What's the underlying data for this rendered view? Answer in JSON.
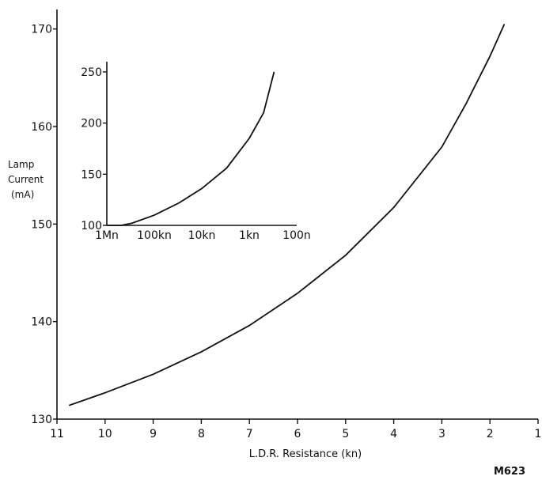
{
  "chart_data": [
    {
      "type": "line",
      "title": "",
      "xlabel": "L.D.R. Resistance (kn)",
      "ylabel": [
        "Lamp",
        "Current",
        "(mA)"
      ],
      "xlim": [
        11,
        1
      ],
      "ylim": [
        130,
        172
      ],
      "xticks": [
        11,
        10,
        9,
        8,
        7,
        6,
        5,
        4,
        3,
        2,
        1
      ],
      "xtick_labels": [
        "11",
        "10",
        "9",
        "8",
        "7",
        "6",
        "5",
        "4",
        "3",
        "2",
        "1"
      ],
      "yticks": [
        130,
        140,
        150,
        160,
        170
      ],
      "ytick_labels": [
        "130",
        "140",
        "150",
        "160",
        "170"
      ],
      "series": [
        {
          "x": [
            10.75,
            10,
            9,
            8,
            7,
            6,
            5,
            4,
            3,
            2.5,
            2,
            1.7
          ],
          "y": [
            131.4,
            132.7,
            134.6,
            136.9,
            139.6,
            142.9,
            146.8,
            151.7,
            157.9,
            162.3,
            167.2,
            170.5
          ]
        }
      ],
      "grid": false
    },
    {
      "type": "line",
      "title": "",
      "xscale": "log",
      "x_range_labels": [
        "1M",
        "100"
      ],
      "xtick_labels": [
        "1Mn",
        "100kn",
        "10kn",
        "1kn",
        "100n"
      ],
      "ylim": [
        100,
        260
      ],
      "yticks": [
        100,
        150,
        200,
        250
      ],
      "ytick_labels": [
        "100",
        "150",
        "200",
        "250"
      ],
      "series": [
        {
          "x": [
            "1M",
            "500k",
            "300k",
            "100k",
            "30k",
            "10k",
            "3k",
            "1k",
            "500",
            "300"
          ],
          "y": [
            100,
            100,
            102,
            110,
            122,
            136,
            156,
            185,
            210,
            250
          ]
        }
      ],
      "grid": false
    }
  ],
  "figure_code": "M623"
}
